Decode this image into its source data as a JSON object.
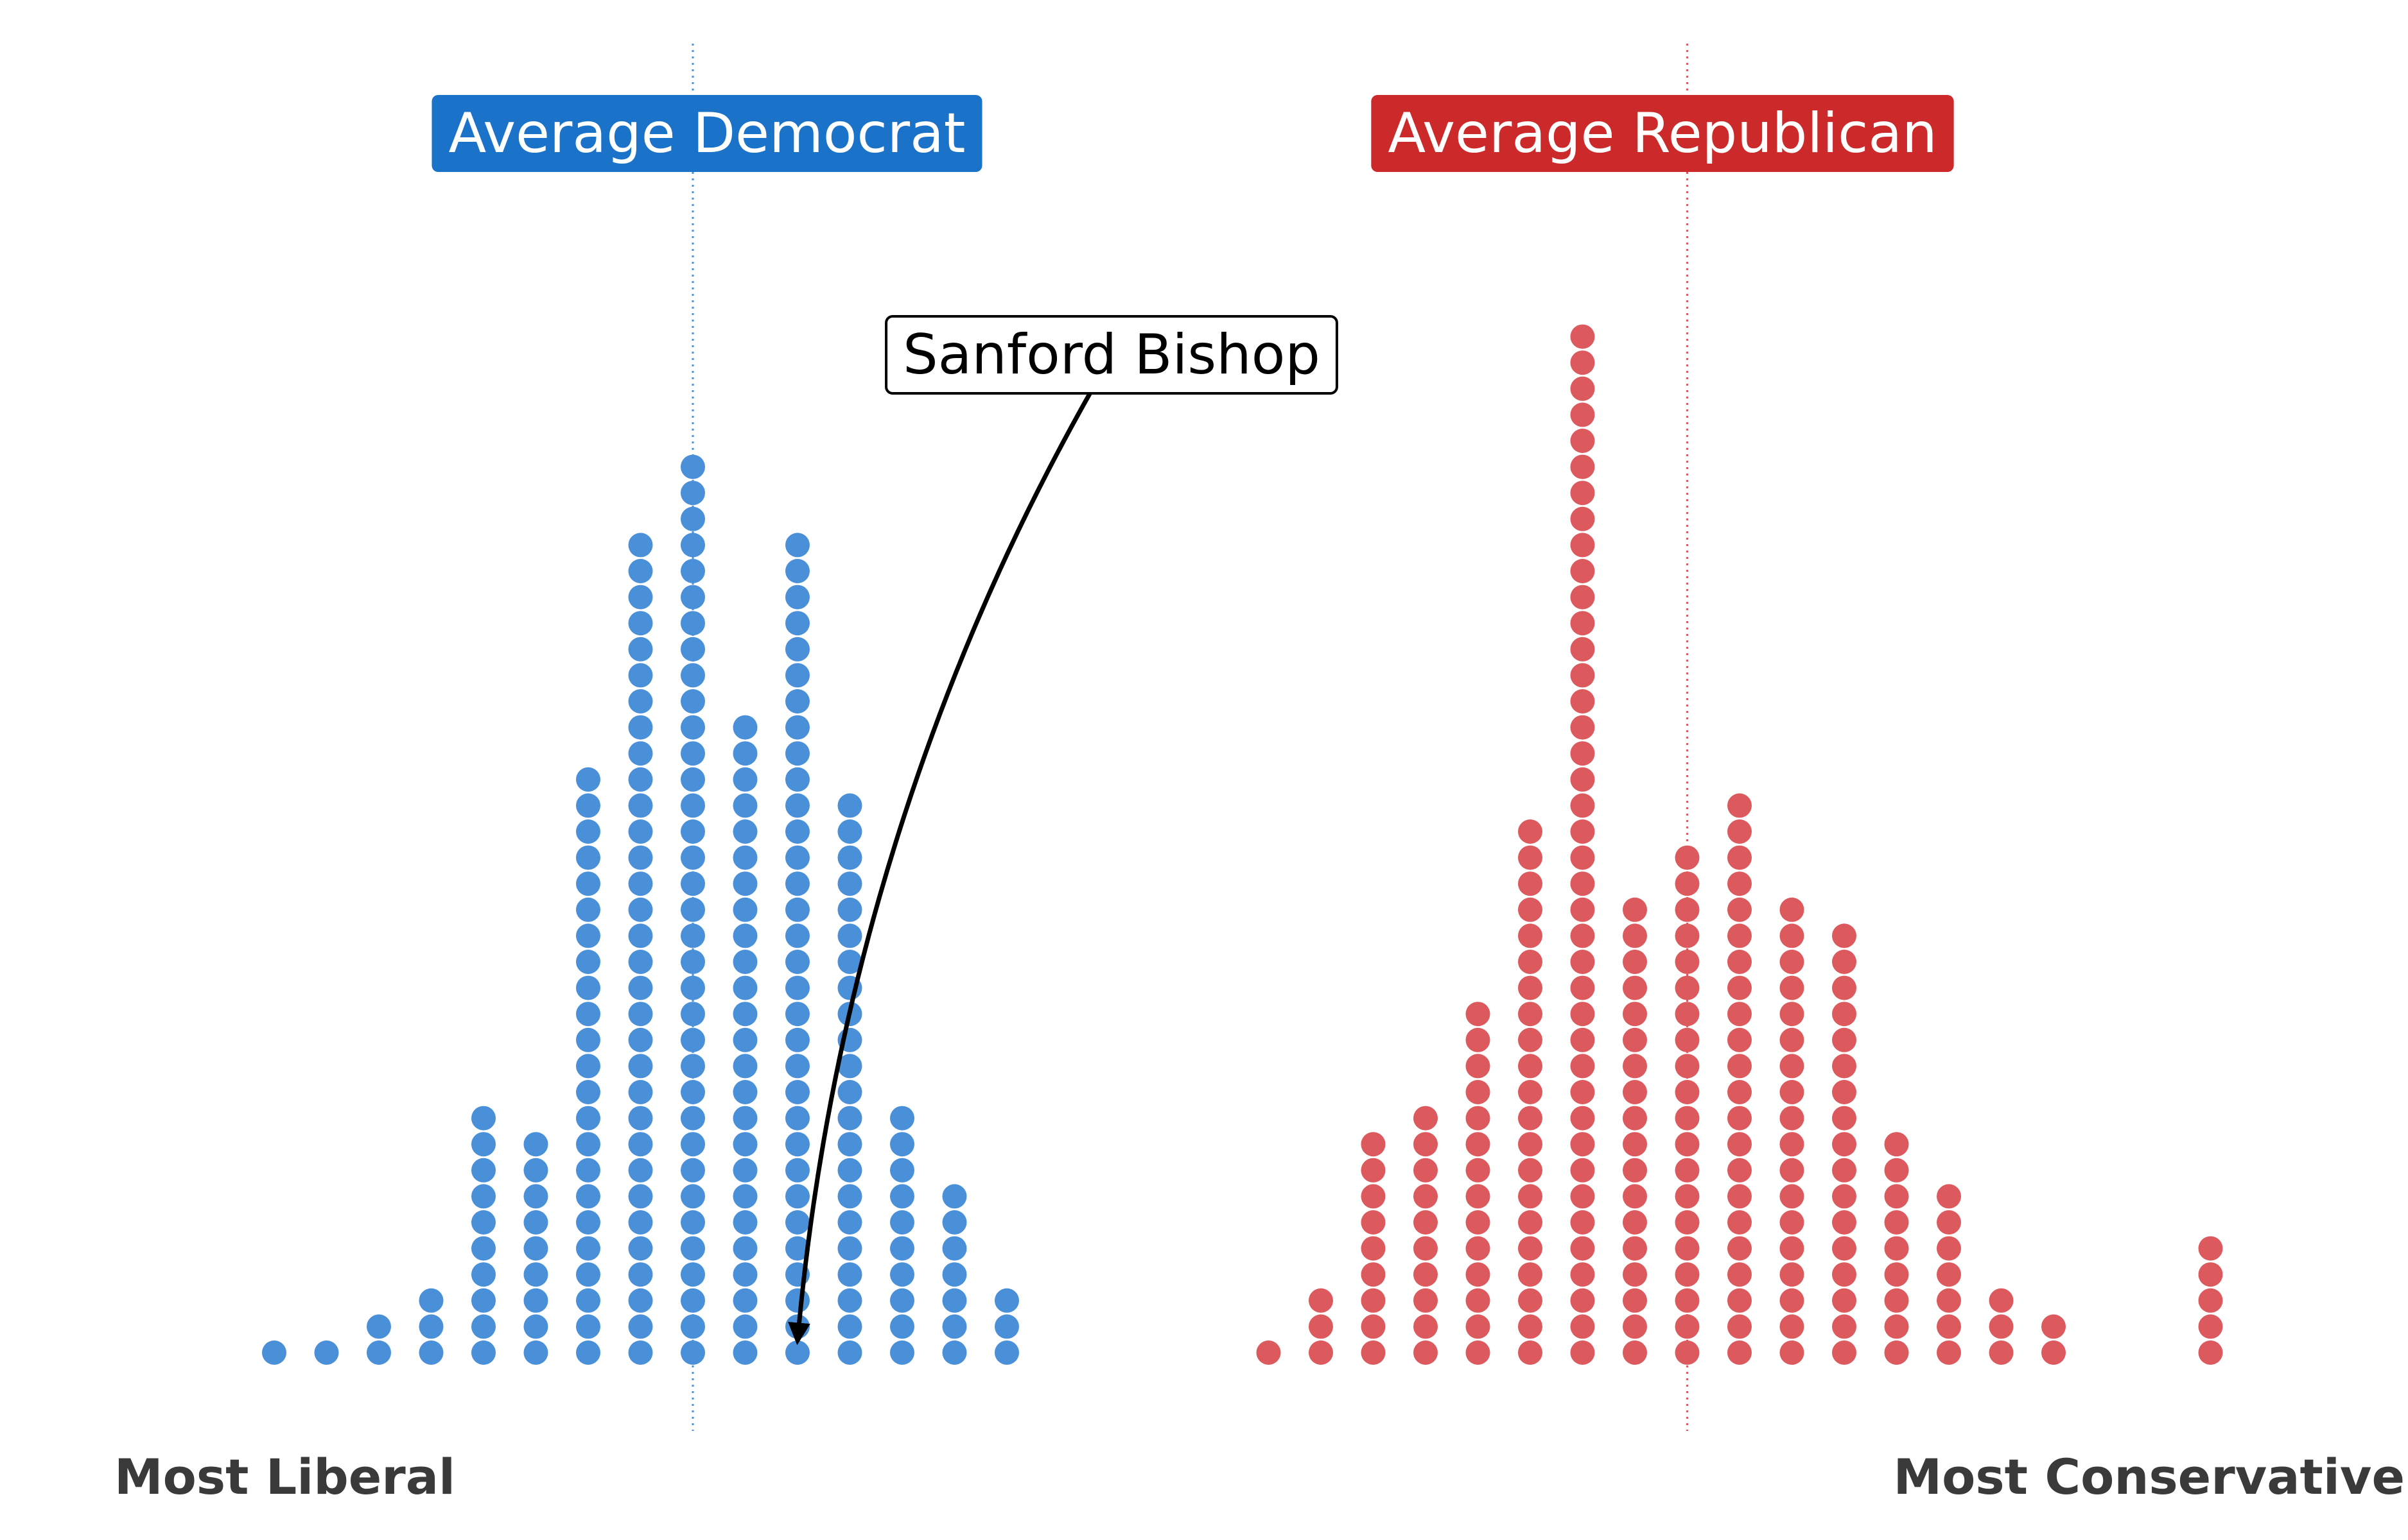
{
  "chart_data": {
    "type": "dot-histogram",
    "title": "",
    "xlabel": "",
    "ylabel": "",
    "axis_labels": {
      "left": "Most Liberal",
      "right": "Most Conservative"
    },
    "grid": false,
    "series": [
      {
        "name": "Democrats",
        "color": "#4a90d9",
        "bins": [
          1,
          2,
          3,
          4,
          5,
          6,
          7,
          8,
          9,
          10,
          11,
          12,
          13,
          14,
          15
        ],
        "counts": [
          1,
          1,
          2,
          3,
          10,
          9,
          23,
          32,
          35,
          25,
          32,
          22,
          10,
          7,
          3
        ]
      },
      {
        "name": "Republicans",
        "color": "#dc5a5e",
        "bins": [
          20,
          21,
          22,
          23,
          24,
          25,
          26,
          27,
          28,
          29,
          30,
          31,
          32,
          33,
          34,
          35,
          36,
          38
        ],
        "counts": [
          1,
          3,
          9,
          10,
          14,
          21,
          40,
          18,
          20,
          22,
          18,
          17,
          9,
          7,
          3,
          2,
          0,
          5
        ]
      }
    ],
    "annotations": [
      {
        "text": "Average Democrat",
        "type": "mean-line",
        "x": 9,
        "background": "#1a73c9",
        "text_color": "#ffffff"
      },
      {
        "text": "Average Republican",
        "type": "mean-line",
        "x": 28,
        "background": "#cc2a2a",
        "text_color": "#ffffff"
      },
      {
        "text": "Sanford Bishop",
        "type": "callout",
        "target_bin": 11,
        "target_level": 2,
        "background": "#ffffff",
        "text_color": "#000000"
      }
    ],
    "colors": {
      "axis_label": "#3a3a3a",
      "dem_line": "#4a90d9",
      "rep_line": "#dc5a5e"
    }
  }
}
